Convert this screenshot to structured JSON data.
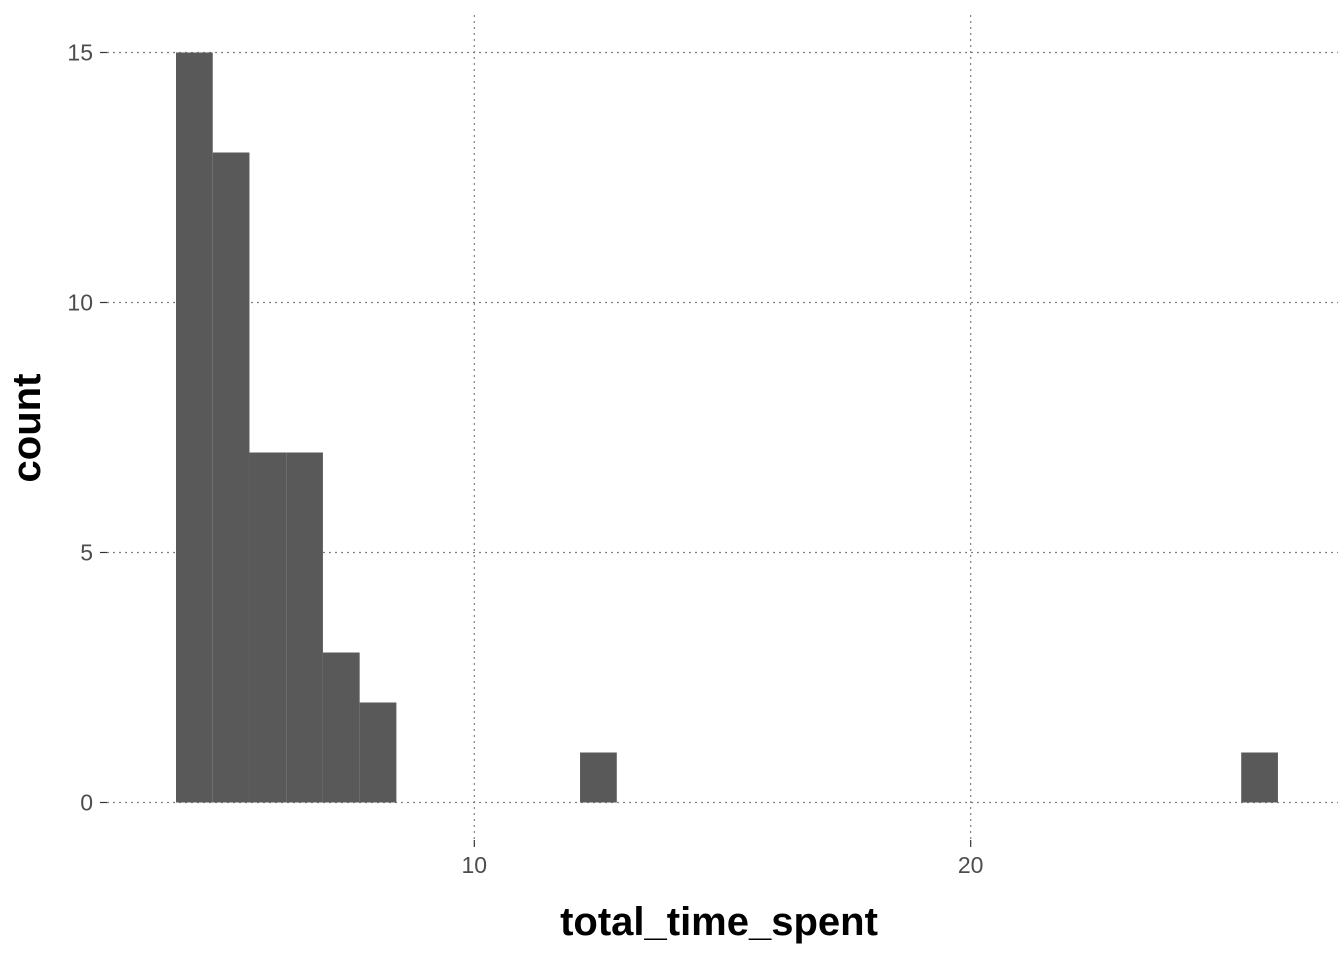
{
  "chart_data": {
    "type": "bar",
    "histogram": true,
    "xlabel": "total_time_spent",
    "ylabel": "count",
    "xlim": [
      2.6,
      27.4
    ],
    "ylim": [
      -0.75,
      15.75
    ],
    "x_ticks": [
      10,
      20
    ],
    "y_ticks": [
      0,
      5,
      10,
      15
    ],
    "grid": true,
    "grid_style": "dotted",
    "bar_color": "#595959",
    "bins": [
      {
        "x0": 3.99,
        "x1": 4.73,
        "count": 15
      },
      {
        "x0": 4.73,
        "x1": 5.47,
        "count": 13
      },
      {
        "x0": 5.47,
        "x1": 6.21,
        "count": 7
      },
      {
        "x0": 6.21,
        "x1": 6.95,
        "count": 7
      },
      {
        "x0": 6.95,
        "x1": 7.69,
        "count": 3
      },
      {
        "x0": 7.69,
        "x1": 8.43,
        "count": 2
      },
      {
        "x0": 12.13,
        "x1": 12.87,
        "count": 1
      },
      {
        "x0": 25.45,
        "x1": 26.19,
        "count": 1
      }
    ]
  }
}
